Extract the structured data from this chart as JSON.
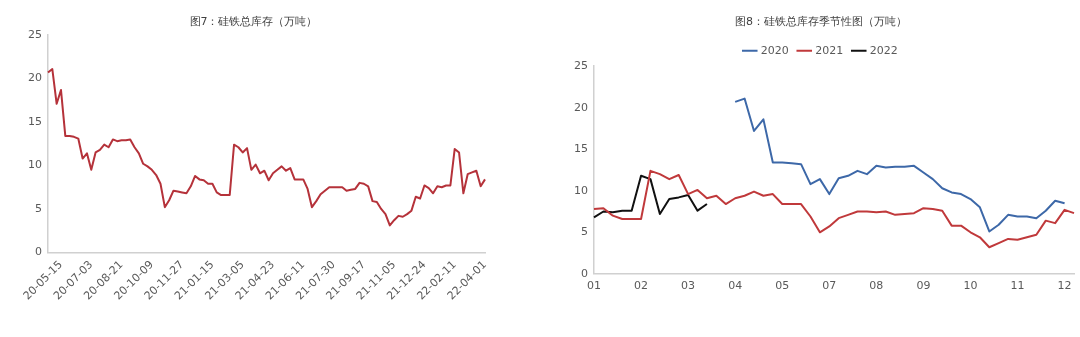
{
  "chart_data": [
    {
      "type": "line",
      "title": "图7：硅铁总库存（万吨）",
      "categories": [
        null,
        null,
        null,
        "20-05-15",
        null,
        null,
        null,
        null,
        null,
        null,
        "20-07-03",
        null,
        null,
        null,
        null,
        null,
        null,
        "20-08-21",
        null,
        null,
        null,
        null,
        null,
        null,
        "20-10-09",
        null,
        null,
        null,
        null,
        null,
        null,
        "20-11-27",
        null,
        null,
        null,
        null,
        null,
        null,
        "21-01-15",
        null,
        null,
        null,
        null,
        null,
        null,
        "21-03-05",
        null,
        null,
        null,
        null,
        null,
        null,
        "21-04-23",
        null,
        null,
        null,
        null,
        null,
        null,
        "21-06-11",
        null,
        null,
        null,
        null,
        null,
        null,
        "21-07-30",
        null,
        null,
        null,
        null,
        null,
        null,
        "21-09-17",
        null,
        null,
        null,
        null,
        null,
        null,
        "21-11-05",
        null,
        null,
        null,
        null,
        null,
        null,
        "21-12-24",
        null,
        null,
        null,
        null,
        null,
        null,
        "22-02-11",
        null,
        null,
        null,
        null,
        null,
        null,
        "22-04-01"
      ],
      "series": [
        {
          "color": "#b5323a",
          "values": [
            20.7,
            21.1,
            17.1,
            18.7,
            13.4,
            13.4,
            13.3,
            13.1,
            10.8,
            11.4,
            9.5,
            11.5,
            11.8,
            12.4,
            12.1,
            13.0,
            12.8,
            12.9,
            12.9,
            13.0,
            12.1,
            11.4,
            10.2,
            9.9,
            9.5,
            8.9,
            7.9,
            5.2,
            6.0,
            7.1,
            7.0,
            6.9,
            6.8,
            7.6,
            8.8,
            8.4,
            8.3,
            7.9,
            7.9,
            6.9,
            6.6,
            6.6,
            6.6,
            12.4,
            12.1,
            11.5,
            12.0,
            9.5,
            10.1,
            9.1,
            9.4,
            8.3,
            9.1,
            9.5,
            9.9,
            9.4,
            9.7,
            8.4,
            8.4,
            8.4,
            7.3,
            5.2,
            5.9,
            6.7,
            7.1,
            7.5,
            7.5,
            7.5,
            7.5,
            7.1,
            7.2,
            7.3,
            8.0,
            7.9,
            7.6,
            5.9,
            5.8,
            5.0,
            4.4,
            3.1,
            3.7,
            4.2,
            4.1,
            4.4,
            4.8,
            6.4,
            6.2,
            7.7,
            7.4,
            6.8,
            7.6,
            7.5,
            7.7,
            7.7,
            11.9,
            11.5,
            6.8,
            9.0,
            9.2,
            9.4,
            7.6,
            8.4
          ]
        }
      ],
      "ylim": [
        0,
        25
      ],
      "yticks": [
        0,
        5,
        10,
        15,
        20,
        25
      ],
      "grid": false,
      "legend": false
    },
    {
      "type": "line",
      "title": "图8：硅铁总库存季节性图（万吨）",
      "series": [
        {
          "name": "2020",
          "color": "#3d68a8",
          "values": [
            null,
            null,
            null,
            null,
            null,
            null,
            null,
            null,
            null,
            null,
            null,
            null,
            null,
            null,
            null,
            20.7,
            21.1,
            17.2,
            18.6,
            13.4,
            13.4,
            13.3,
            13.2,
            10.8,
            11.4,
            9.6,
            11.5,
            11.8,
            12.4,
            12.0,
            13.0,
            12.8,
            12.9,
            12.9,
            13.0,
            12.2,
            11.4,
            10.3,
            9.8,
            9.6,
            9.0,
            8.0,
            5.1,
            5.9,
            7.1,
            6.9,
            6.9,
            6.7,
            7.6,
            8.8,
            8.5,
            null
          ]
        },
        {
          "name": "2021",
          "color": "#c0393b",
          "values": [
            7.8,
            7.9,
            7.0,
            6.6,
            6.6,
            6.6,
            12.4,
            12.0,
            11.4,
            11.9,
            9.6,
            10.1,
            9.1,
            9.4,
            8.4,
            9.1,
            9.4,
            9.9,
            9.4,
            9.6,
            8.4,
            8.4,
            8.4,
            6.9,
            5.0,
            5.7,
            6.7,
            7.1,
            7.5,
            7.5,
            7.4,
            7.5,
            7.1,
            7.2,
            7.3,
            7.9,
            7.8,
            7.6,
            5.8,
            5.8,
            5.0,
            4.4,
            3.2,
            3.7,
            4.2,
            4.1,
            4.4,
            4.7,
            6.4,
            6.1,
            7.7,
            7.3
          ]
        },
        {
          "name": "2022",
          "color": "#111111",
          "values": [
            6.8,
            7.5,
            7.4,
            7.6,
            7.6,
            11.8,
            11.4,
            7.2,
            9.0,
            9.2,
            9.5,
            7.6,
            8.4,
            null,
            null,
            null,
            null,
            null,
            null,
            null,
            null,
            null,
            null,
            null,
            null,
            null,
            null,
            null,
            null,
            null,
            null,
            null,
            null,
            null,
            null,
            null,
            null,
            null,
            null,
            null,
            null,
            null,
            null,
            null,
            null,
            null,
            null,
            null,
            null,
            null,
            null,
            null
          ]
        }
      ],
      "categories": [
        "01",
        null,
        null,
        null,
        null,
        "02",
        null,
        null,
        null,
        null,
        "03",
        null,
        null,
        null,
        null,
        "04",
        null,
        null,
        null,
        null,
        "05",
        null,
        null,
        null,
        null,
        "07",
        null,
        null,
        null,
        null,
        "08",
        null,
        null,
        null,
        null,
        "09",
        null,
        null,
        null,
        null,
        "10",
        null,
        null,
        null,
        null,
        "11",
        null,
        null,
        null,
        null,
        "12",
        null
      ],
      "ylim": [
        0,
        25
      ],
      "yticks": [
        0,
        5,
        10,
        15,
        20,
        25
      ],
      "grid": false,
      "legend": "top"
    }
  ]
}
